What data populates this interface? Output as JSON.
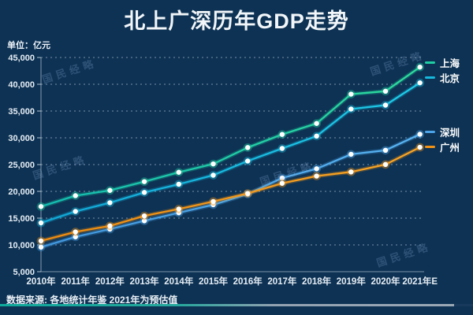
{
  "title": "北上广深历年GDP走势",
  "unit_label": "单位：亿元",
  "watermark_text": "国民经略",
  "footer": {
    "source_note": "数据来源: 各地统计年鉴  2021年为预估值"
  },
  "colors": {
    "background": "#0d3254",
    "title_text": "#f2f6f9",
    "axis_text": "#e6edf4",
    "gridline": "rgba(214,226,238,0.55)",
    "marker_fill": "#ffffff",
    "footer_bar_teal": "#0fa99b",
    "footer_bar_gray": "#9aa7b5"
  },
  "chart_data": {
    "type": "line",
    "title": "北上广深历年GDP走势",
    "unit": "亿元",
    "categories": [
      "2010年",
      "2011年",
      "2012年",
      "2013年",
      "2014年",
      "2015年",
      "2016年",
      "2017年",
      "2018年",
      "2019年",
      "2020年",
      "2021年E"
    ],
    "series": [
      {
        "name": "上海",
        "key": "shanghai",
        "color": "#1fcfa3",
        "color2": "#2edb9a",
        "color1": "#13bdb2",
        "values": [
          17166,
          19196,
          20182,
          21818,
          23568,
          25123,
          28179,
          30633,
          32680,
          38155,
          38701,
          43215
        ]
      },
      {
        "name": "北京",
        "key": "beijing",
        "color": "#16b8dc",
        "color2": "#1fcbe8",
        "color1": "#10a6d6",
        "values": [
          14114,
          16252,
          17879,
          19801,
          21331,
          23015,
          25669,
          28015,
          30320,
          35371,
          36103,
          40270
        ]
      },
      {
        "name": "深圳",
        "key": "shenzhen",
        "color": "#4ba3e8",
        "color2": "#58b4f2",
        "color1": "#4196dd",
        "values": [
          9582,
          11506,
          12950,
          14500,
          16002,
          17503,
          19493,
          22490,
          24222,
          26927,
          27670,
          30665
        ]
      },
      {
        "name": "广州",
        "key": "guangzhou",
        "color": "#f39214",
        "color2": "#f8a525",
        "color1": "#ee8a0e",
        "values": [
          10748,
          12423,
          13551,
          15420,
          16707,
          18100,
          19611,
          21503,
          22859,
          23629,
          25019,
          28232
        ]
      }
    ],
    "ylim": [
      5000,
      45000
    ],
    "ytick_step": 5000,
    "grid": "dashed horizontal",
    "legend_position": "right"
  }
}
